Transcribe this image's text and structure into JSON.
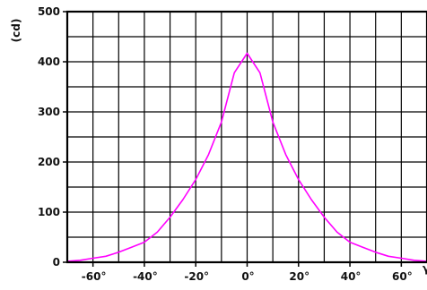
{
  "chart_data": {
    "type": "line",
    "title": "",
    "xlabel": "γ",
    "ylabel": "(cd)",
    "xlim": [
      -70,
      70
    ],
    "ylim": [
      0,
      500
    ],
    "grid": true,
    "x_major_ticks": [
      -60,
      -40,
      -20,
      0,
      20,
      40,
      60
    ],
    "x_tick_labels": [
      "-60°",
      "-40°",
      "-20°",
      "0°",
      "20°",
      "40°",
      "60°"
    ],
    "x_minor_ticks": [
      -70,
      -50,
      -30,
      -10,
      10,
      30,
      50,
      70
    ],
    "y_major_ticks": [
      0,
      100,
      200,
      300,
      400,
      500
    ],
    "y_tick_labels": [
      "0",
      "100",
      "200",
      "300",
      "400",
      "500"
    ],
    "y_minor_ticks": [
      50,
      150,
      250,
      350,
      450
    ],
    "series": [
      {
        "color": "#ff00ff",
        "x": [
          -70,
          -65,
          -60,
          -55,
          -50,
          -45,
          -40,
          -35,
          -30,
          -25,
          -20,
          -15,
          -10,
          -5,
          0,
          5,
          10,
          15,
          20,
          25,
          30,
          35,
          40,
          45,
          50,
          55,
          60,
          65,
          70
        ],
        "y": [
          2,
          4,
          8,
          12,
          20,
          30,
          40,
          60,
          90,
          125,
          165,
          215,
          280,
          378,
          417,
          378,
          280,
          215,
          165,
          125,
          90,
          60,
          40,
          30,
          20,
          12,
          8,
          4,
          2
        ]
      }
    ]
  }
}
